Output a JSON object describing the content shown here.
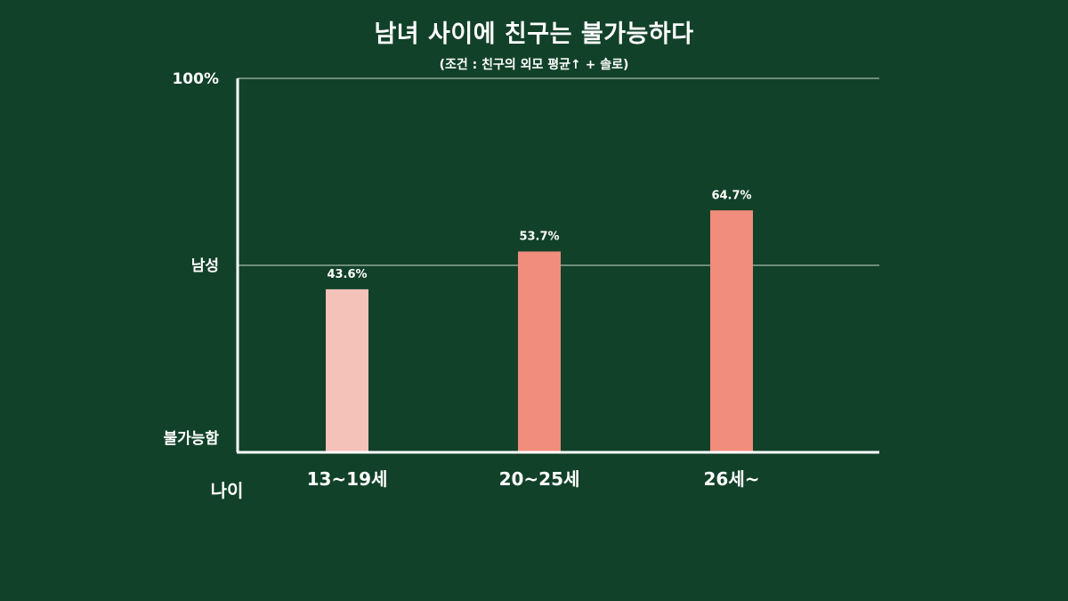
{
  "chart_data": {
    "type": "bar",
    "title": "남녀 사이에 친구는 불가능하다",
    "subtitle": "(조건 : 친구의 외모 평균↑ + 솔로)",
    "xlabel": "나이",
    "ylabel": "",
    "categories": [
      "13~19세",
      "20~25세",
      "26세~"
    ],
    "values": [
      43.6,
      53.7,
      64.7
    ],
    "value_labels": [
      "43.6%",
      "53.7%",
      "64.7%"
    ],
    "ylim": [
      0,
      100
    ],
    "y_ticks": [
      {
        "value": 100,
        "label": "100%"
      },
      {
        "value": 50,
        "label": "남성"
      },
      {
        "value": 0,
        "label": "불가능함"
      }
    ],
    "gridlines": [
      100,
      50
    ],
    "colors": {
      "background": "#124129",
      "bars": [
        "#f4c2b8",
        "#f18d7c",
        "#f18d7c"
      ],
      "axis": "#ffffff",
      "grid": "#c9d6cc"
    }
  }
}
